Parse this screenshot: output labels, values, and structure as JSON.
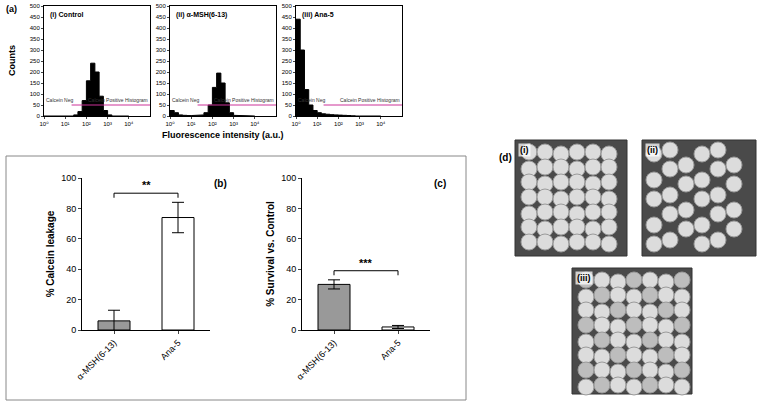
{
  "chart_data": [
    {
      "type": "histogram",
      "title": "(i) Control",
      "log": "x",
      "bins": [
        1,
        1.585,
        2.512,
        3.981,
        6.31,
        10,
        15.85,
        25.12,
        39.81,
        63.1,
        100,
        158.5,
        251.2,
        398.1,
        631,
        1000,
        1585,
        2512,
        3981,
        6310,
        10000
      ],
      "counts": [
        0,
        0,
        0,
        0,
        0,
        0,
        0,
        5,
        20,
        70,
        160,
        240,
        200,
        90,
        25,
        5,
        0,
        0,
        0,
        0
      ],
      "color": "#000000",
      "xlim": [
        1,
        100000
      ],
      "xticks": [
        {
          "value": 1,
          "label": "10⁰"
        },
        {
          "value": 10,
          "label": "10¹"
        },
        {
          "value": 100,
          "label": "10²"
        },
        {
          "value": 1000,
          "label": "10³"
        },
        {
          "value": 10000,
          "label": "10⁴"
        }
      ],
      "ylim": [
        0,
        500
      ],
      "yticks": [
        0,
        50,
        100,
        150,
        200,
        250,
        300,
        350,
        400,
        450,
        500
      ],
      "gate": {
        "label": "Calcein Positive Histogram",
        "negative_label": "Calcein Neg",
        "y": 50,
        "x_start": 20,
        "color": "#cc3399"
      }
    },
    {
      "type": "histogram",
      "title": "(ii) α-MSH(6-13)",
      "log": "x",
      "bins": [
        1,
        1.585,
        2.512,
        3.981,
        6.31,
        10,
        15.85,
        25.12,
        39.81,
        63.1,
        100,
        158.5,
        251.2,
        398.1,
        631,
        1000,
        1585,
        2512,
        3981,
        6310,
        10000
      ],
      "counts": [
        25,
        15,
        5,
        3,
        2,
        2,
        3,
        5,
        15,
        50,
        130,
        195,
        150,
        60,
        15,
        3,
        0,
        0,
        0,
        0
      ],
      "color": "#000000",
      "xlim": [
        1,
        100000
      ],
      "xticks": [
        {
          "value": 1,
          "label": "10⁰"
        },
        {
          "value": 10,
          "label": "10¹"
        },
        {
          "value": 100,
          "label": "10²"
        },
        {
          "value": 1000,
          "label": "10³"
        },
        {
          "value": 10000,
          "label": "10⁴"
        }
      ],
      "ylim": [
        0,
        500
      ],
      "yticks": [
        0,
        50,
        100,
        150,
        200,
        250,
        300,
        350,
        400,
        450,
        500
      ],
      "gate": {
        "label": "Calcein Positive Histogram",
        "negative_label": "Calcein Neg",
        "y": 50,
        "x_start": 20,
        "color": "#cc3399"
      }
    },
    {
      "type": "histogram",
      "title": "(iii) Ana-5",
      "log": "x",
      "bins": [
        1,
        1.585,
        2.512,
        3.981,
        6.31,
        10,
        15.85,
        25.12,
        39.81,
        63.1,
        100,
        158.5,
        251.2,
        398.1,
        631,
        1000,
        1585,
        2512,
        3981,
        6310,
        10000
      ],
      "counts": [
        440,
        300,
        120,
        50,
        25,
        15,
        10,
        8,
        6,
        5,
        4,
        3,
        2,
        1,
        0,
        0,
        0,
        0,
        0,
        0
      ],
      "color": "#000000",
      "xlim": [
        1,
        100000
      ],
      "xticks": [
        {
          "value": 1,
          "label": "10⁰"
        },
        {
          "value": 10,
          "label": "10¹"
        },
        {
          "value": 100,
          "label": "10²"
        },
        {
          "value": 1000,
          "label": "10³"
        },
        {
          "value": 10000,
          "label": "10⁴"
        }
      ],
      "ylim": [
        0,
        500
      ],
      "yticks": [
        0,
        50,
        100,
        150,
        200,
        250,
        300,
        350,
        400,
        450,
        500
      ],
      "gate": {
        "label": "Calcein Positive Histogram",
        "negative_label": "Calcein Neg",
        "y": 50,
        "x_start": 20,
        "color": "#cc3399"
      }
    },
    {
      "type": "bar",
      "panel": "(b)",
      "ylabel": "% Calcein leakage",
      "categories": [
        "α-MSH(6-13)",
        "Ana-5"
      ],
      "values": [
        6,
        74
      ],
      "errors": [
        7,
        10
      ],
      "colors": [
        "#999999",
        "#ffffff"
      ],
      "marker": "crosshatch",
      "ylim": [
        0,
        100
      ],
      "yticks": [
        0,
        20,
        40,
        60,
        80,
        100
      ],
      "significance": "**"
    },
    {
      "type": "bar",
      "panel": "(c)",
      "ylabel": "% Survival vs. Control",
      "categories": [
        "α-MSH(6-13)",
        "Ana-5"
      ],
      "values": [
        30,
        2
      ],
      "errors": [
        3,
        1
      ],
      "colors": [
        "#999999",
        "#ffffff"
      ],
      "marker": "dots",
      "ylim": [
        0,
        100
      ],
      "yticks": [
        0,
        20,
        40,
        60,
        80,
        100
      ],
      "significance": "***"
    }
  ],
  "panel_a": {
    "label": "(a)",
    "xlabel": "Fluorescence intensity (a.u.)",
    "ylabel": "Counts"
  },
  "panel_d": {
    "label": "(d)",
    "image_labels": [
      "(i)",
      "(ii)",
      "(iii)"
    ]
  }
}
